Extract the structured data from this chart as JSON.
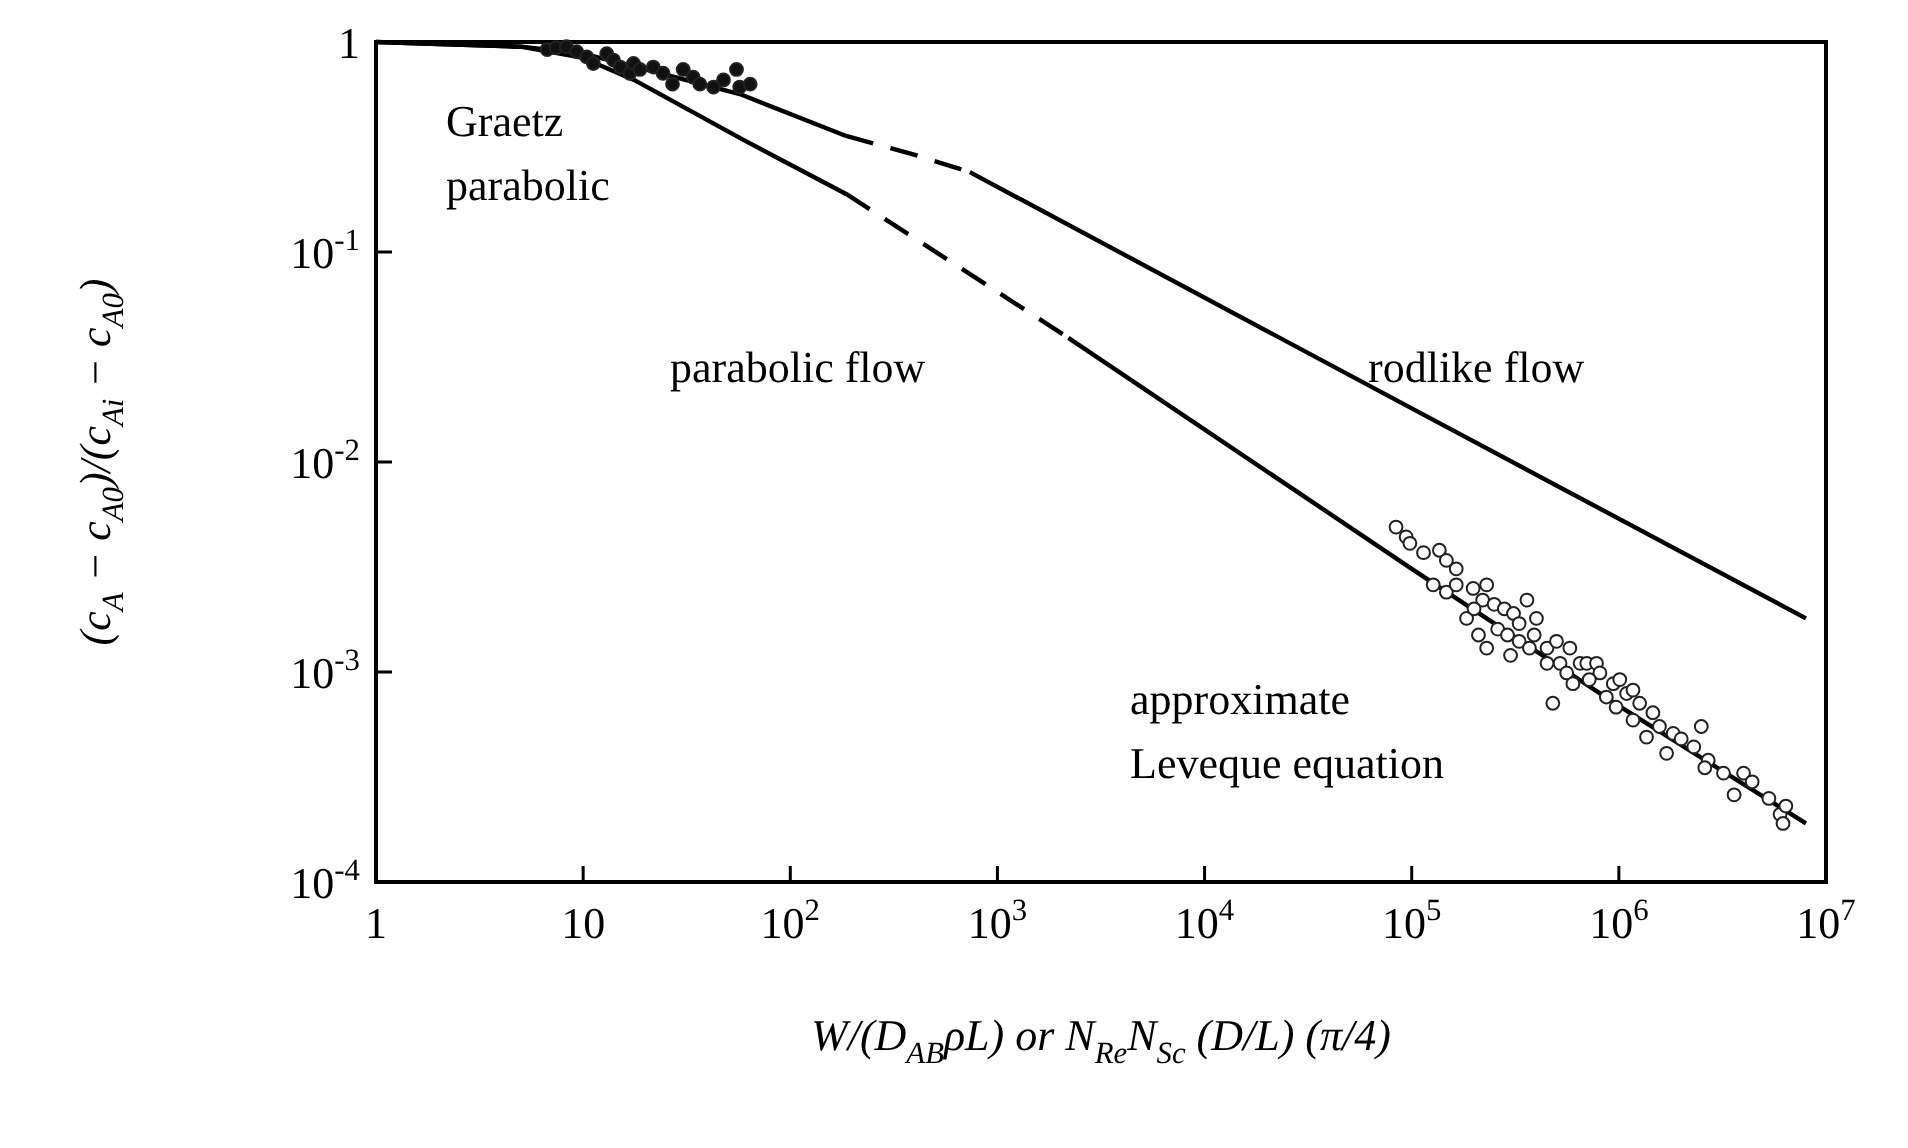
{
  "chart_data": {
    "type": "line",
    "log": "xy",
    "xlim": [
      1,
      10000000
    ],
    "ylim": [
      0.0001,
      1
    ],
    "xticks": [
      1,
      10,
      {
        "value": 100,
        "label": "10$^{2}$"
      },
      {
        "value": 1000,
        "label": "10$^{3}$"
      },
      {
        "value": 10000,
        "label": "10$^{4}$"
      },
      {
        "value": 100000,
        "label": "10$^{5}$"
      },
      {
        "value": 1000000,
        "label": "10$^{6}$"
      },
      {
        "value": 10000000,
        "label": "10$^{7}$"
      }
    ],
    "yticks": [
      {
        "value": 0.0001,
        "label": "10$^{-4}$"
      },
      {
        "value": 0.001,
        "label": "10$^{-3}$"
      },
      {
        "value": 0.01,
        "label": "10$^{-2}$"
      },
      {
        "value": 0.1,
        "label": "10$^{-1}$"
      },
      1
    ],
    "xlabel": "W/(D$_{AB}$ρL) or N$_{Re}$N$_{Sc}$ (D/L) (π/4)",
    "ylabel": "(c$_{A}$ − c$_{A0}$)/(c$_{Ai}$ − c$_{A0}$)",
    "annotations": [
      "Graetz\nparabolic",
      "parabolic flow",
      "rodlike flow",
      "approximate\nLeveque equation"
    ],
    "series": [
      {
        "line_style": "solid",
        "color": "#000000",
        "x": [
          1,
          5,
          10,
          20,
          57,
          186
        ],
        "values": [
          1,
          0.95,
          0.88,
          0.74,
          0.565,
          0.357
        ]
      },
      {
        "line_style": "dashed",
        "color": "#000000",
        "x": [
          186,
          400,
          736
        ],
        "values": [
          0.357,
          0.29,
          0.24
        ]
      },
      {
        "line_style": "solid",
        "color": "#000000",
        "x": [
          736,
          100000,
          8000000
        ],
        "values": [
          0.24,
          0.018,
          0.0018
        ]
      },
      {
        "line_style": "solid",
        "color": "#000000",
        "x": [
          1,
          5,
          10,
          17.6,
          60,
          186
        ],
        "values": [
          1,
          0.95,
          0.84,
          0.66,
          0.34,
          0.189
        ]
      },
      {
        "line_style": "dashed",
        "color": "#000000",
        "x": [
          186,
          2200
        ],
        "values": [
          0.189,
          0.039
        ]
      },
      {
        "line_style": "solid",
        "color": "#000000",
        "x": [
          2200,
          100000,
          1000000,
          8000000
        ],
        "values": [
          0.039,
          0.0031,
          0.00069,
          0.00019
        ]
      },
      {
        "type": "scatter",
        "marker": "circle",
        "color": "#111111",
        "x": [
          6.7,
          7.4,
          8.3,
          9.3,
          10.4,
          11.2,
          13,
          14,
          15.1,
          16.8,
          17.5,
          18.8,
          21.8,
          24.3,
          27,
          30.4,
          34,
          36.6,
          42.6,
          47.6,
          55,
          57,
          64
        ],
        "values": [
          0.92,
          0.94,
          0.95,
          0.9,
          0.85,
          0.79,
          0.88,
          0.82,
          0.76,
          0.71,
          0.79,
          0.74,
          0.76,
          0.71,
          0.63,
          0.74,
          0.68,
          0.63,
          0.61,
          0.66,
          0.74,
          0.61,
          0.63
        ]
      },
      {
        "type": "scatter",
        "marker": "circle",
        "color": "#ffffff",
        "x": [
          84000,
          94000,
          98000,
          114000,
          136000,
          147000,
          164000,
          127000,
          147000,
          198000,
          230000,
          220000,
          184000,
          250000,
          280000,
          310000,
          330000,
          210000,
          260000,
          290000,
          230000,
          330000,
          390000,
          370000,
          450000,
          500000,
          580000,
          650000,
          520000,
          700000,
          780000,
          810000,
          720000,
          940000,
          1090000,
          870000,
          970000,
          1260000,
          1170000,
          1460000,
          1570000,
          1360000,
          1830000,
          2500000,
          2300000,
          1700000,
          2700000,
          3200000,
          4000000,
          4400000,
          3600000,
          5300000,
          6000000,
          6200000,
          480000,
          450000,
          300000,
          560000,
          600000,
          1010000,
          1170000,
          2000000,
          2600000,
          6400000,
          360000,
          400000,
          200000,
          164000
        ],
        "values": [
          0.0049,
          0.0044,
          0.0041,
          0.0037,
          0.0038,
          0.0034,
          0.0031,
          0.0026,
          0.0024,
          0.0025,
          0.0026,
          0.0022,
          0.0018,
          0.0021,
          0.002,
          0.0019,
          0.0017,
          0.0015,
          0.0016,
          0.0015,
          0.0013,
          0.0014,
          0.0015,
          0.0013,
          0.0013,
          0.0014,
          0.0013,
          0.0011,
          0.0011,
          0.0011,
          0.0011,
          0.00099,
          0.00092,
          0.00088,
          0.00079,
          0.00076,
          0.00068,
          0.00071,
          0.00059,
          0.00064,
          0.00055,
          0.00049,
          0.00051,
          0.00055,
          0.00044,
          0.00041,
          0.00038,
          0.00033,
          0.00033,
          0.0003,
          0.00026,
          0.00025,
          0.00021,
          0.00019,
          0.00071,
          0.0011,
          0.0012,
          0.00099,
          0.00088,
          0.00092,
          0.00082,
          0.00048,
          0.00035,
          0.00023,
          0.0022,
          0.0018,
          0.002,
          0.0026
        ]
      }
    ]
  }
}
